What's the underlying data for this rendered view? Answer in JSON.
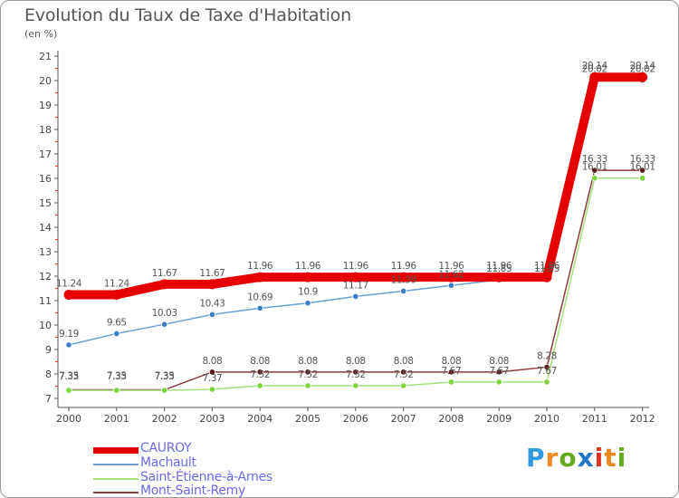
{
  "title": "Evolution du Taux de Taxe d'Habitation",
  "subtitle": "(en %)",
  "logo": "Proxiti",
  "colors": {
    "axis": "#555555",
    "tick_text": "#444444",
    "value_text": "#555555",
    "logo": [
      "#3399dd",
      "#ee8822",
      "#66aa22",
      "#2277cc",
      "#dd3322",
      "#ee8822",
      "#66aa22"
    ]
  },
  "chart_data": {
    "type": "line",
    "x": [
      "2000",
      "2001",
      "2002",
      "2003",
      "2004",
      "2005",
      "2006",
      "2007",
      "2008",
      "2009",
      "2010",
      "2011",
      "2012"
    ],
    "ylim": [
      7,
      21
    ],
    "yticks": [
      7,
      8,
      9,
      10,
      11,
      12,
      13,
      14,
      15,
      16,
      17,
      18,
      19,
      20,
      21
    ],
    "grid": false,
    "legend_position": "bottom-left",
    "series": [
      {
        "name": "CAUROY",
        "color": "#e60000",
        "point_color": "#e60000",
        "values": [
          11.24,
          11.24,
          11.67,
          11.67,
          11.96,
          11.96,
          11.96,
          11.96,
          11.96,
          11.96,
          11.96,
          20.14,
          20.14
        ],
        "labels": [
          "11.24",
          "11.24",
          "11.67",
          "11.67",
          "11.96",
          "11.96",
          "11.96",
          "11.96",
          "11.96",
          "11.96",
          "11.96",
          "20.14",
          "20.14"
        ]
      },
      {
        "name": "Machault",
        "color": "#6b9fd4",
        "point_color": "#3a7fc6",
        "values": [
          9.19,
          9.65,
          10.03,
          10.43,
          10.69,
          10.9,
          11.17,
          11.39,
          11.62,
          11.85,
          11.85,
          20.02,
          20.02
        ],
        "labels": [
          "9.19",
          "9.65",
          "10.03",
          "10.43",
          "10.69",
          "10.9",
          "11.17",
          "11.39",
          "11.62",
          "11.85",
          "11.85",
          "20.02",
          "20.02"
        ]
      },
      {
        "name": "Saint-Étienne-à-Arnes",
        "color": "#a6e07a",
        "point_color": "#7cd33a",
        "values": [
          7.33,
          7.33,
          7.33,
          7.37,
          7.52,
          7.52,
          7.52,
          7.52,
          7.67,
          7.67,
          7.67,
          16.01,
          16.01
        ],
        "labels": [
          "7.33",
          "7.33",
          "7.33",
          "7.37",
          "7.52",
          "7.52",
          "7.52",
          "7.52",
          "7.67",
          "7.67",
          "7.67",
          "16.01",
          "16.01"
        ]
      },
      {
        "name": "Mont-Saint-Remy",
        "color": "#8a3c3c",
        "point_color": "#5c1a1a",
        "values": [
          7.35,
          7.35,
          7.35,
          8.08,
          8.08,
          8.08,
          8.08,
          8.08,
          8.08,
          8.08,
          8.28,
          16.33,
          16.33
        ],
        "labels": [
          "7.35",
          "7.35",
          "7.35",
          "8.08",
          "8.08",
          "8.08",
          "8.08",
          "8.08",
          "8.08",
          "8.08",
          "8.28",
          "16.33",
          "16.33"
        ]
      }
    ]
  }
}
